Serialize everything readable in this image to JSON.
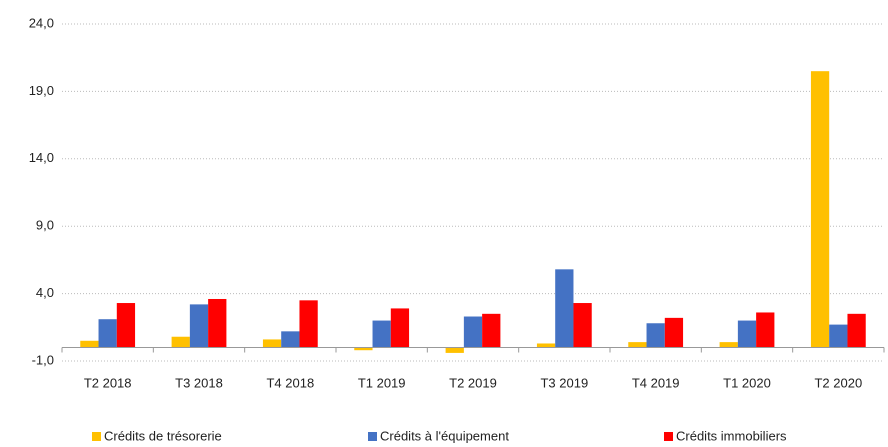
{
  "chart_data": {
    "type": "bar",
    "categories": [
      "T2 2018",
      "T3 2018",
      "T4 2018",
      "T1 2019",
      "T2 2019",
      "T3 2019",
      "T4 2019",
      "T1 2020",
      "T2 2020"
    ],
    "series": [
      {
        "name": "Crédits de trésorerie",
        "color": "#ffc000",
        "values": [
          0.5,
          0.8,
          0.6,
          -0.2,
          -0.4,
          0.3,
          0.4,
          0.4,
          20.5
        ]
      },
      {
        "name": "Crédits à l'équipement",
        "color": "#4472c4",
        "values": [
          2.1,
          3.2,
          1.2,
          2.0,
          2.3,
          5.8,
          1.8,
          2.0,
          1.7
        ]
      },
      {
        "name": "Crédits immobiliers",
        "color": "#ff0000",
        "values": [
          3.3,
          3.6,
          3.5,
          2.9,
          2.5,
          3.3,
          2.2,
          2.6,
          2.5
        ]
      }
    ],
    "ylim": [
      -1,
      24
    ],
    "yticks": [
      {
        "value": -1,
        "label": "-1,0"
      },
      {
        "value": 4,
        "label": "4,0"
      },
      {
        "value": 9,
        "label": "9,0"
      },
      {
        "value": 14,
        "label": "14,0"
      },
      {
        "value": 19,
        "label": "19,0"
      },
      {
        "value": 24,
        "label": "24,0"
      }
    ],
    "grid": true,
    "legend": "bottom"
  }
}
